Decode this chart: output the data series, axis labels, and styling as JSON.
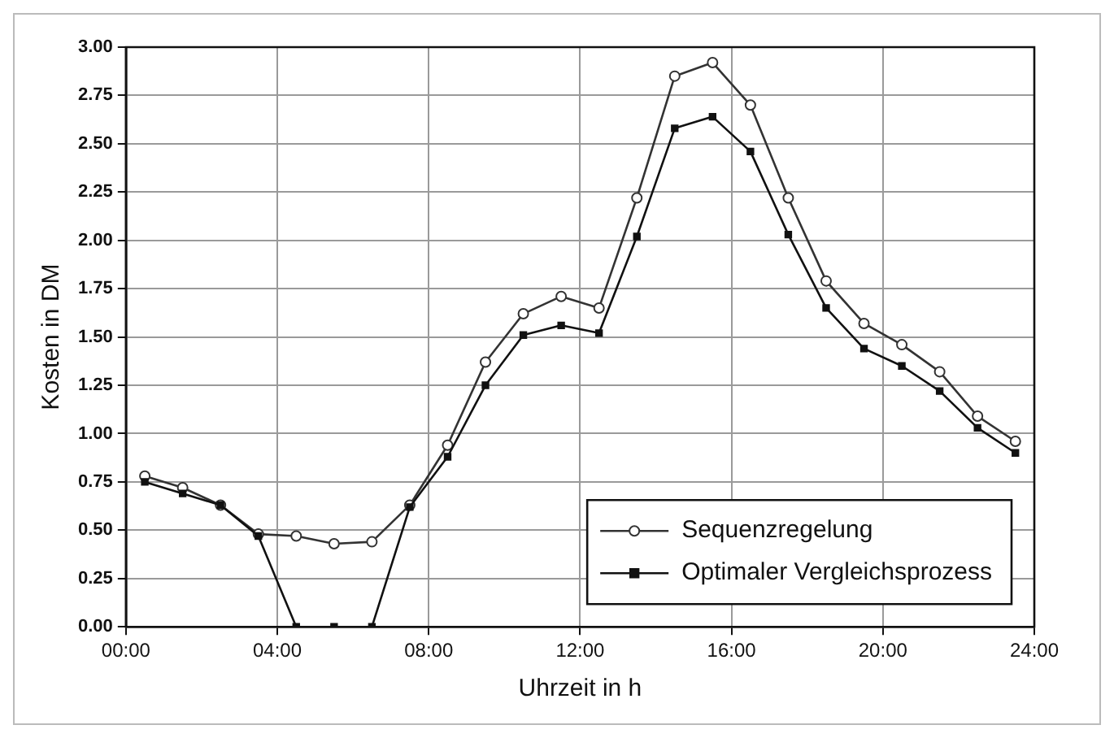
{
  "chart_data": {
    "type": "line",
    "xlabel": "Uhrzeit in h",
    "ylabel": "Kosten in DM",
    "x": [
      0.5,
      1.5,
      2.5,
      3.5,
      4.5,
      5.5,
      6.5,
      7.5,
      8.5,
      9.5,
      10.5,
      11.5,
      12.5,
      13.5,
      14.5,
      15.5,
      16.5,
      17.5,
      18.5,
      19.5,
      20.5,
      21.5,
      22.5,
      23.5
    ],
    "series": [
      {
        "name": "Sequenzregelung",
        "color": "#333333",
        "marker": "circle",
        "values": [
          0.78,
          0.72,
          0.63,
          0.48,
          0.47,
          0.43,
          0.44,
          0.63,
          0.94,
          1.37,
          1.62,
          1.71,
          1.65,
          2.22,
          2.85,
          2.92,
          2.7,
          2.22,
          1.79,
          1.57,
          1.46,
          1.32,
          1.09,
          0.96
        ]
      },
      {
        "name": "Optimaler Vergleichsprozess",
        "color": "#111111",
        "marker": "square",
        "values": [
          0.75,
          0.69,
          0.63,
          0.47,
          0.0,
          0.0,
          0.0,
          0.62,
          0.88,
          1.25,
          1.51,
          1.56,
          1.52,
          2.02,
          2.58,
          2.64,
          2.46,
          2.03,
          1.65,
          1.44,
          1.35,
          1.22,
          1.03,
          0.9
        ]
      }
    ],
    "xlim": [
      0,
      24
    ],
    "xticks": [
      {
        "value": 0,
        "label": "00:00"
      },
      {
        "value": 4,
        "label": "04:00"
      },
      {
        "value": 8,
        "label": "08:00"
      },
      {
        "value": 12,
        "label": "12:00"
      },
      {
        "value": 16,
        "label": "16:00"
      },
      {
        "value": 20,
        "label": "20:00"
      },
      {
        "value": 24,
        "label": "24:00"
      }
    ],
    "ylim": [
      0,
      3
    ],
    "yticks": [
      {
        "value": 0,
        "label": "0.00"
      },
      {
        "value": 0.25,
        "label": "0.25"
      },
      {
        "value": 0.5,
        "label": "0.50"
      },
      {
        "value": 0.75,
        "label": "0.75"
      },
      {
        "value": 1,
        "label": "1.00"
      },
      {
        "value": 1.25,
        "label": "1.25"
      },
      {
        "value": 1.5,
        "label": "1.50"
      },
      {
        "value": 1.75,
        "label": "1.75"
      },
      {
        "value": 2,
        "label": "2.00"
      },
      {
        "value": 2.25,
        "label": "2.25"
      },
      {
        "value": 2.5,
        "label": "2.50"
      },
      {
        "value": 2.75,
        "label": "2.75"
      },
      {
        "value": 3,
        "label": "3.00"
      }
    ],
    "grid": true,
    "legend": "bottom right"
  }
}
